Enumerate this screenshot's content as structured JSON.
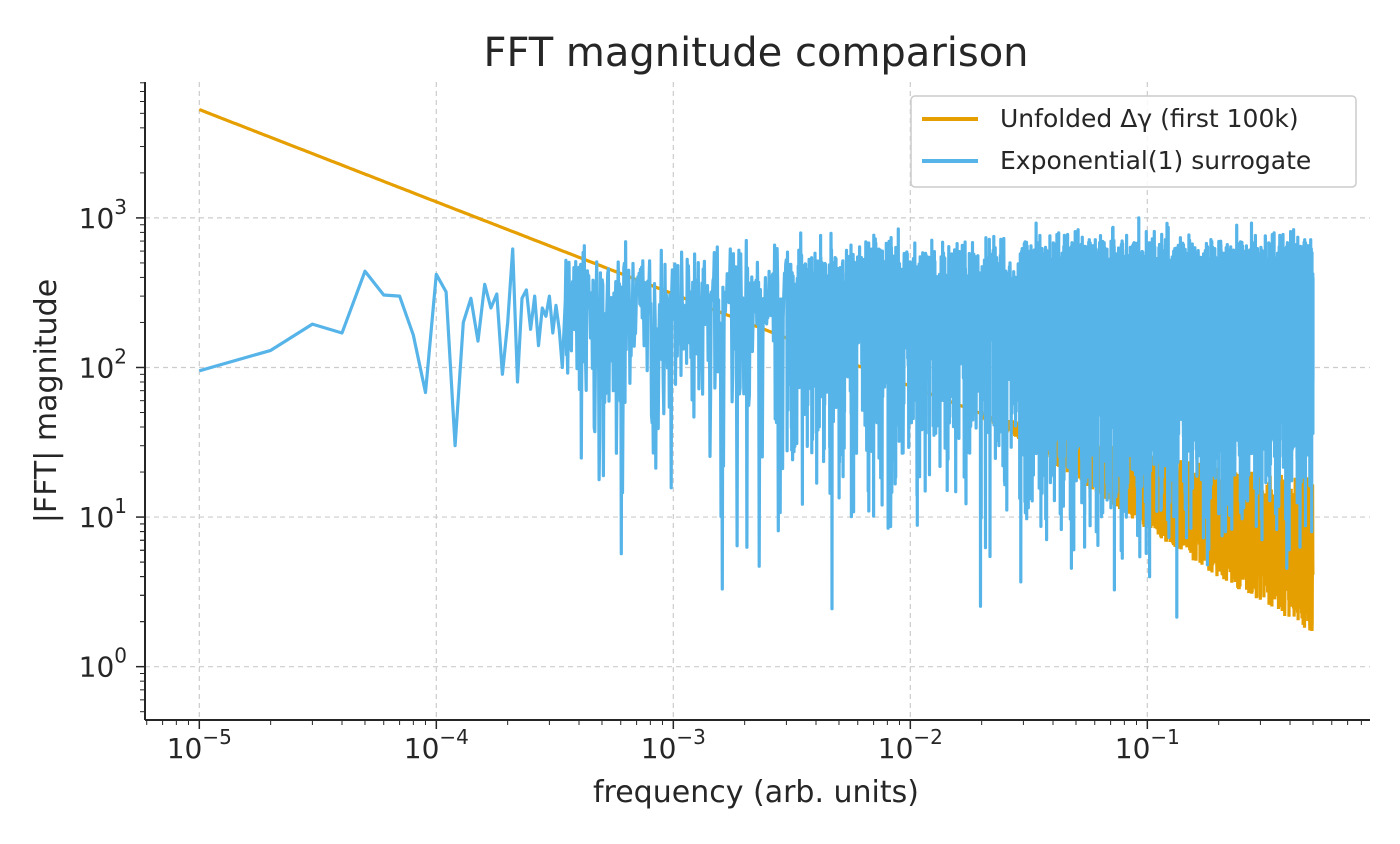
{
  "chart_data": {
    "type": "line",
    "title": "FFT magnitude comparison",
    "xlabel": "frequency (arb. units)",
    "ylabel": "|FFT| magnitude",
    "xscale": "log",
    "yscale": "log",
    "xlim": [
      5.9e-06,
      0.87
    ],
    "ylim": [
      0.44,
      8100
    ],
    "xticks": [
      {
        "value": 1e-05,
        "label": "10^-5"
      },
      {
        "value": 0.0001,
        "label": "10^-4"
      },
      {
        "value": 0.001,
        "label": "10^-3"
      },
      {
        "value": 0.01,
        "label": "10^-2"
      },
      {
        "value": 0.1,
        "label": "10^-1"
      }
    ],
    "yticks": [
      {
        "value": 1,
        "label": "10^0"
      },
      {
        "value": 10,
        "label": "10^1"
      },
      {
        "value": 100,
        "label": "10^2"
      },
      {
        "value": 1000,
        "label": "10^3"
      }
    ],
    "grid": true,
    "legend": "top-right",
    "series": [
      {
        "name": "Unfolded Δγ (first 100k)",
        "color": "#E69F00",
        "points": [
          [
            1e-05,
            5300
          ],
          [
            0.0001,
            1280
          ],
          [
            0.001,
            310
          ],
          [
            0.01,
            75
          ],
          [
            0.05,
            28
          ],
          [
            0.1,
            18
          ],
          [
            0.2,
            12
          ],
          [
            0.5,
            8
          ]
        ]
      },
      {
        "name": "Exponential(1) surrogate",
        "color": "#56B4E9",
        "points": [
          [
            1e-05,
            95
          ],
          [
            2e-05,
            130
          ],
          [
            3e-05,
            195
          ],
          [
            4e-05,
            170
          ],
          [
            5e-05,
            440
          ],
          [
            6e-05,
            305
          ],
          [
            7e-05,
            300
          ],
          [
            8e-05,
            165
          ],
          [
            9e-05,
            68
          ],
          [
            0.0001,
            420
          ],
          [
            0.00011,
            320
          ],
          [
            0.00012,
            30
          ],
          [
            0.00013,
            200
          ],
          [
            0.00014,
            290
          ],
          [
            0.00015,
            150
          ],
          [
            0.00016,
            360
          ],
          [
            0.00017,
            250
          ],
          [
            0.00018,
            310
          ],
          [
            0.00019,
            90
          ],
          [
            0.0002,
            200
          ],
          [
            0.00021,
            620
          ],
          [
            0.00022,
            80
          ],
          [
            0.00023,
            290
          ],
          [
            0.00024,
            330
          ],
          [
            0.00025,
            180
          ],
          [
            0.00026,
            300
          ],
          [
            0.00027,
            140
          ],
          [
            0.00028,
            250
          ],
          [
            0.00029,
            220
          ],
          [
            0.0003,
            300
          ],
          [
            0.00031,
            170
          ],
          [
            0.00032,
            260
          ],
          [
            0.00033,
            180
          ],
          [
            0.00034,
            100
          ],
          [
            0.00035,
            280
          ]
        ],
        "noise_floor": 0.7,
        "noise_peak": 1050
      }
    ]
  }
}
